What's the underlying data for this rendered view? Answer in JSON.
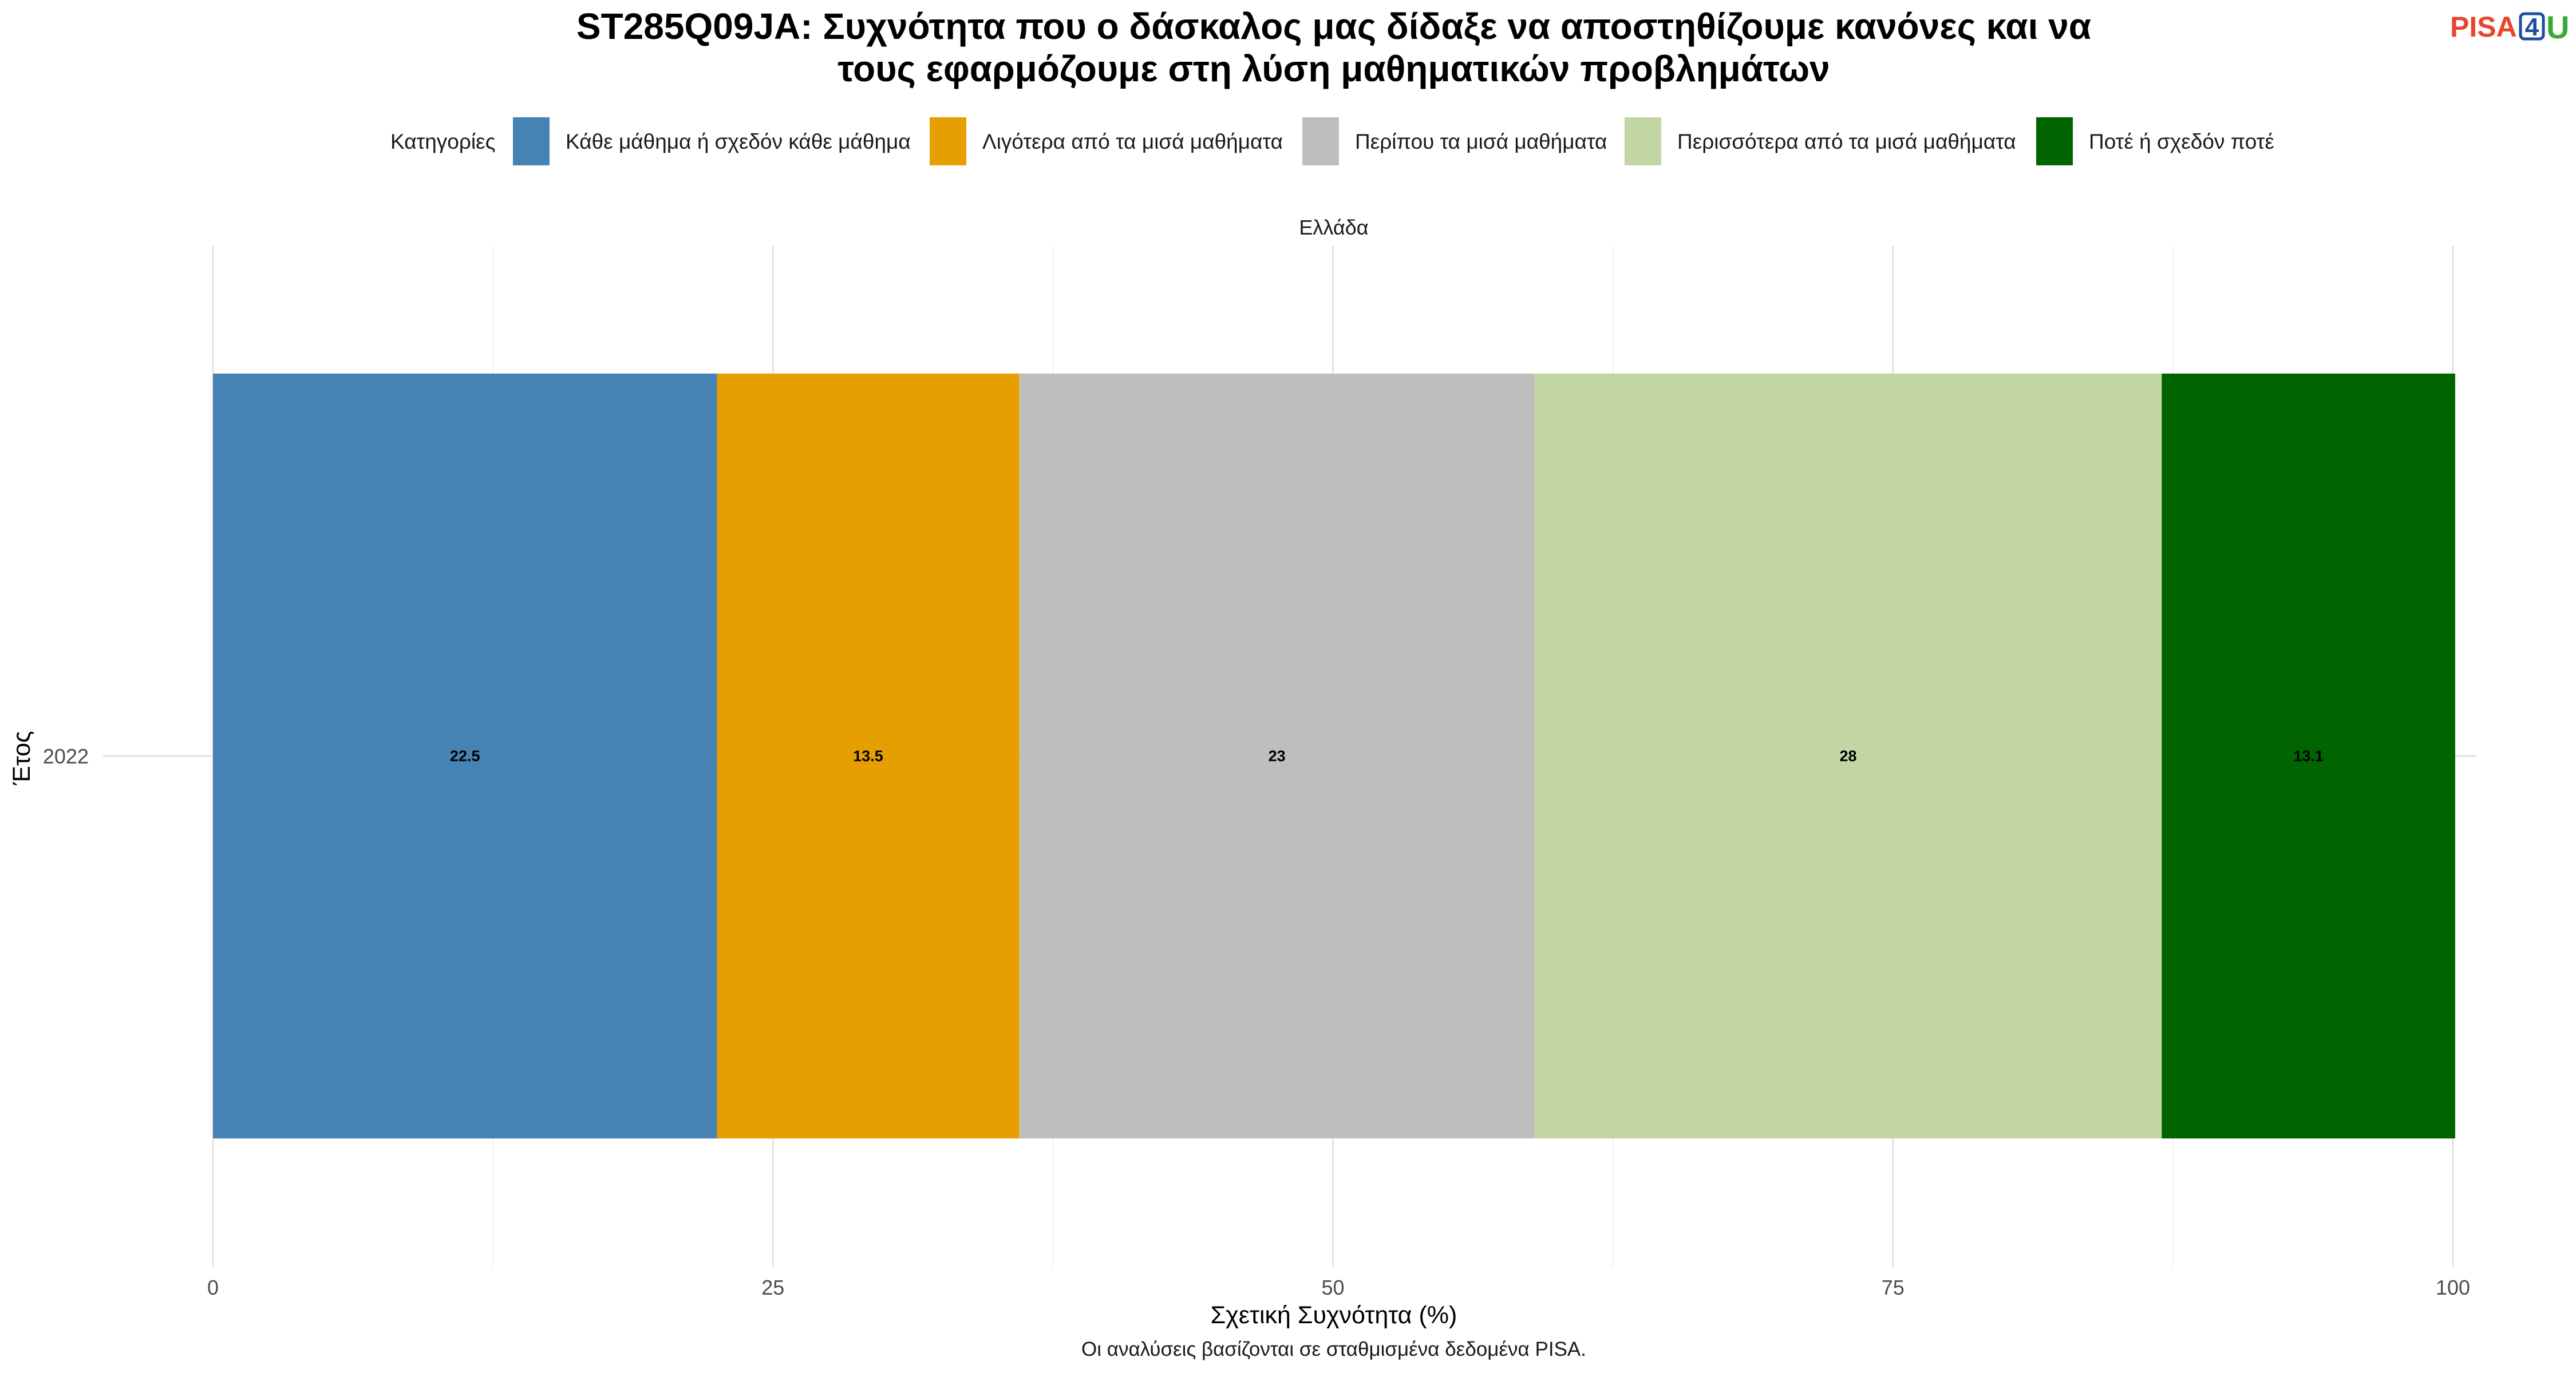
{
  "title_lines": [
    "ST285Q09JA: Συχνότητα που ο δάσκαλος μας δίδαξε να αποστηθίζουμε κανόνες και να",
    "τους εφαρμόζουμε στη λύση μαθηματικών προβλημάτων"
  ],
  "logo": {
    "pisa": "PISA",
    "four": "4",
    "u": "U"
  },
  "legend_title": "Κατηγορίες",
  "caption": "Οι αναλύσεις βασίζονται σε σταθμισμένα δεδομένα PISA.",
  "chart_data": {
    "type": "bar",
    "orientation": "horizontal",
    "stacked": true,
    "facet": "Ελλάδα",
    "categories": [
      "2022"
    ],
    "xlabel": "Σχετική Συχνότητα (%)",
    "ylabel": "Έτος",
    "xlim": [
      0,
      100
    ],
    "x_ticks": [
      "0",
      "25",
      "50",
      "75",
      "100"
    ],
    "grid": true,
    "legend_position": "top",
    "series": [
      {
        "name": "Κάθε μάθημα ή σχεδόν κάθε μάθημα",
        "color": "#4682B4",
        "values": [
          22.5
        ],
        "label": "22.5"
      },
      {
        "name": "Λιγότερα από τα μισά μαθήματα",
        "color": "#E69F00",
        "values": [
          13.5
        ],
        "label": "13.5"
      },
      {
        "name": "Περίπου τα μισά μαθήματα",
        "color": "#BEBEBE",
        "values": [
          23
        ],
        "label": "23"
      },
      {
        "name": "Περισσότερα από τα μισά μαθήματα",
        "color": "#C2D6A4",
        "values": [
          28
        ],
        "label": "28"
      },
      {
        "name": "Ποτέ ή σχεδόν ποτέ",
        "color": "#006400",
        "values": [
          13.1
        ],
        "label": "13.1"
      }
    ]
  }
}
